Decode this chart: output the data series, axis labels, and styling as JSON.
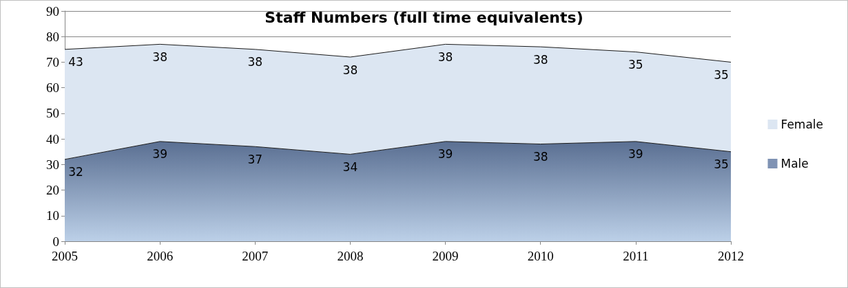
{
  "chart_data": {
    "type": "area",
    "title": "Staff Numbers (full time equivalents)",
    "categories": [
      "2005",
      "2006",
      "2007",
      "2008",
      "2009",
      "2010",
      "2011",
      "2012"
    ],
    "stacked": true,
    "data_labels": true,
    "grid": "y",
    "legend": "right",
    "marker": "none",
    "ylim": [
      0,
      90
    ],
    "yticks": [
      0,
      10,
      20,
      30,
      40,
      50,
      60,
      70,
      80,
      90
    ],
    "series": [
      {
        "name": "Male",
        "color": "#7f93b4",
        "values": [
          32,
          39,
          37,
          34,
          39,
          38,
          39,
          35
        ]
      },
      {
        "name": "Female",
        "color": "#dce6f2",
        "values": [
          43,
          38,
          38,
          38,
          38,
          38,
          35,
          35
        ]
      }
    ]
  }
}
